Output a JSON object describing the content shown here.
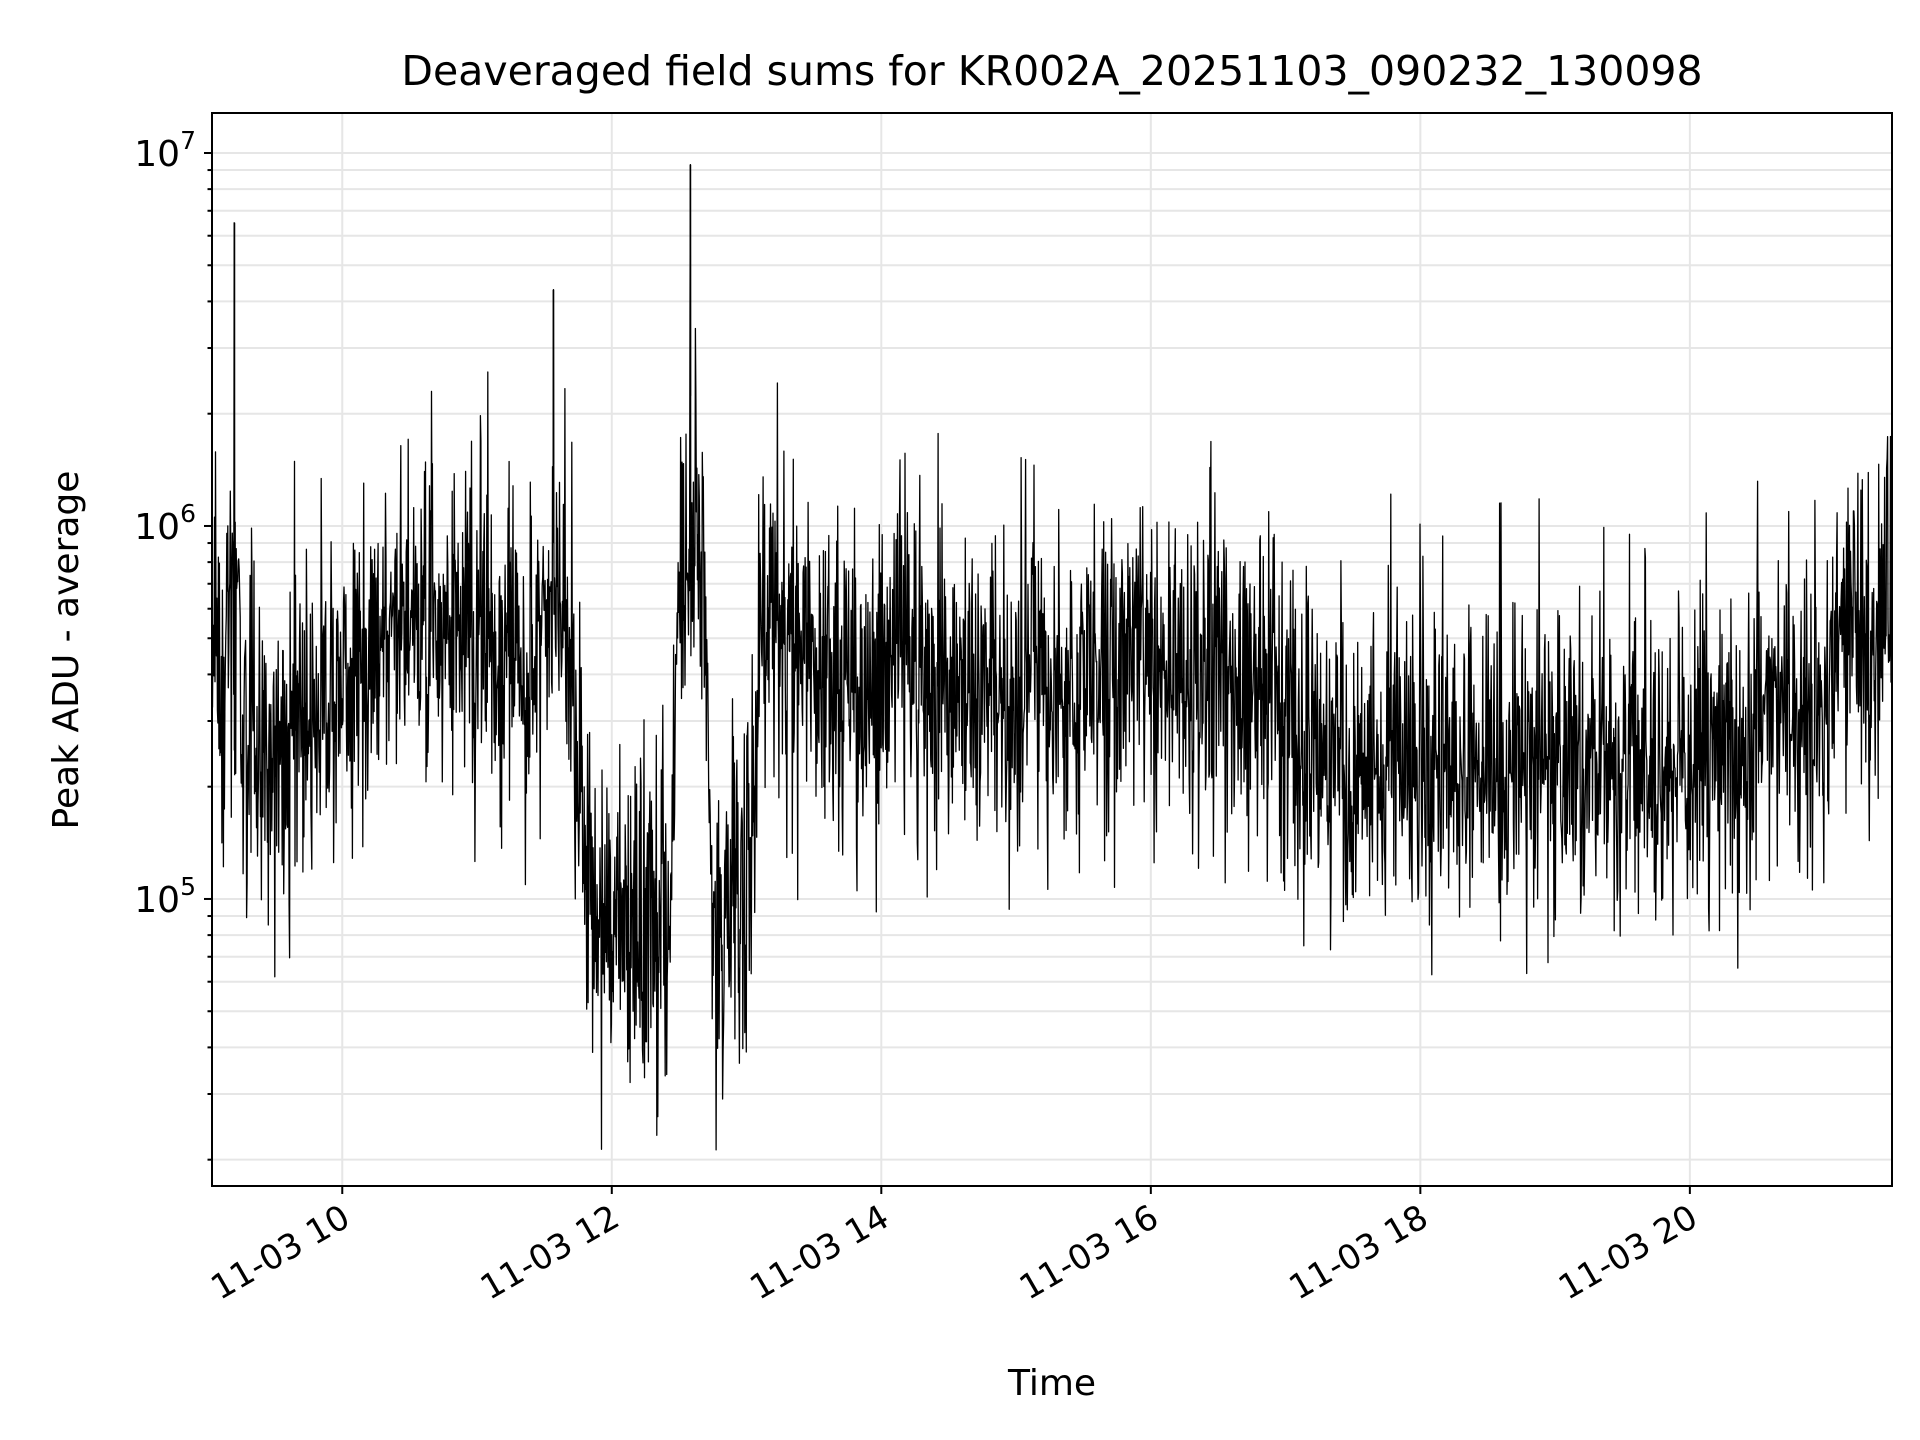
{
  "chart_data": {
    "type": "line",
    "title": "Deaveraged field sums for KR002A_20251103_090232_130098",
    "xlabel": "Time",
    "ylabel": "Peak ADU - average",
    "xscale": "time",
    "yscale": "log",
    "xlim": [
      "2025-11-03 09:02",
      "2025-11-03 21:30"
    ],
    "ylim": [
      17000,
      12800000
    ],
    "grid": true,
    "line_color": "#000000",
    "x_ticks": [
      {
        "value": "2025-11-03 10:00",
        "label": "11-03 10"
      },
      {
        "value": "2025-11-03 12:00",
        "label": "11-03 12"
      },
      {
        "value": "2025-11-03 14:00",
        "label": "11-03 14"
      },
      {
        "value": "2025-11-03 16:00",
        "label": "11-03 16"
      },
      {
        "value": "2025-11-03 18:00",
        "label": "11-03 18"
      },
      {
        "value": "2025-11-03 20:00",
        "label": "11-03 20"
      }
    ],
    "y_ticks": [
      {
        "value": 100000,
        "base": "10",
        "exp": "5"
      },
      {
        "value": 1000000,
        "base": "10",
        "exp": "6"
      },
      {
        "value": 10000000,
        "base": "10",
        "exp": "7"
      }
    ],
    "series": [
      {
        "x": [
          "2025-11-03 09:02",
          "2025-11-03 09:08",
          "2025-11-03 09:12",
          "2025-11-03 09:15",
          "2025-11-03 09:20",
          "2025-11-03 09:30",
          "2025-11-03 09:45",
          "2025-11-03 10:00",
          "2025-11-03 10:15",
          "2025-11-03 10:30",
          "2025-11-03 10:45",
          "2025-11-03 11:00",
          "2025-11-03 11:15",
          "2025-11-03 11:30",
          "2025-11-03 11:34",
          "2025-11-03 11:40",
          "2025-11-03 11:50",
          "2025-11-03 12:00",
          "2025-11-03 12:15",
          "2025-11-03 12:25",
          "2025-11-03 12:35",
          "2025-11-03 12:45",
          "2025-11-03 13:00",
          "2025-11-03 13:08",
          "2025-11-03 13:20",
          "2025-11-03 13:30",
          "2025-11-03 13:45",
          "2025-11-03 14:00",
          "2025-11-03 14:15",
          "2025-11-03 14:30",
          "2025-11-03 14:45",
          "2025-11-03 15:00",
          "2025-11-03 15:08",
          "2025-11-03 15:15",
          "2025-11-03 15:30",
          "2025-11-03 15:45",
          "2025-11-03 16:00",
          "2025-11-03 16:15",
          "2025-11-03 16:30",
          "2025-11-03 16:45",
          "2025-11-03 17:00",
          "2025-11-03 17:15",
          "2025-11-03 17:30",
          "2025-11-03 17:45",
          "2025-11-03 18:00",
          "2025-11-03 18:15",
          "2025-11-03 18:30",
          "2025-11-03 18:45",
          "2025-11-03 19:00",
          "2025-11-03 19:15",
          "2025-11-03 19:30",
          "2025-11-03 19:45",
          "2025-11-03 20:00",
          "2025-11-03 20:15",
          "2025-11-03 20:30",
          "2025-11-03 20:45",
          "2025-11-03 21:00",
          "2025-11-03 21:05",
          "2025-11-03 21:10",
          "2025-11-03 21:20",
          "2025-11-03 21:29"
        ],
        "y": [
          500000,
          350000,
          6500000,
          250000,
          230000,
          260000,
          300000,
          400000,
          500000,
          550000,
          500000,
          480000,
          450000,
          500000,
          4300000,
          500000,
          110000,
          80000,
          85000,
          75000,
          9300000,
          80000,
          100000,
          500000,
          450000,
          400000,
          380000,
          400000,
          420000,
          380000,
          350000,
          300000,
          450000,
          320000,
          380000,
          400000,
          450000,
          420000,
          400000,
          380000,
          300000,
          220000,
          250000,
          240000,
          230000,
          220000,
          250000,
          240000,
          220000,
          210000,
          230000,
          220000,
          250000,
          270000,
          290000,
          300000,
          280000,
          550000,
          600000,
          550000,
          600000
        ]
      }
    ]
  }
}
